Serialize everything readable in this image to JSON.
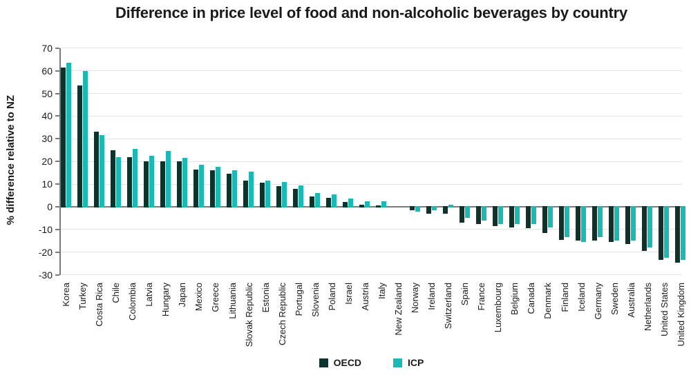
{
  "chart_data": {
    "type": "bar",
    "title": "Difference in price level of food and non-alcoholic beverages by country",
    "ylabel": "% difference relative to NZ",
    "xlabel": "",
    "ylim": [
      -30,
      70
    ],
    "ytick_step": 10,
    "yticks": [
      70,
      60,
      50,
      40,
      30,
      20,
      10,
      0,
      -10,
      -20,
      -30
    ],
    "grid": true,
    "legend_position": "bottom",
    "reference_country": "New Zealand",
    "categories": [
      "Korea",
      "Turkey",
      "Costa Rica",
      "Chile",
      "Colombia",
      "Latvia",
      "Hungary",
      "Japan",
      "Mexico",
      "Greece",
      "Lithuania",
      "Slovak Republic",
      "Estonia",
      "Czech Republic",
      "Portugal",
      "Slovenia",
      "Poland",
      "Israel",
      "Austria",
      "Italy",
      "New Zealand",
      "Norway",
      "Ireland",
      "Switzerland",
      "Spain",
      "France",
      "Luxembourg",
      "Belgium",
      "Canada",
      "Denmark",
      "Finland",
      "Iceland",
      "Germany",
      "Sweden",
      "Australia",
      "Netherlands",
      "United States",
      "United Kingdom"
    ],
    "series": [
      {
        "name": "OECD",
        "color": "#0e332e",
        "values": [
          61.5,
          53.5,
          33,
          25,
          22,
          20,
          20,
          20,
          16.5,
          16,
          14.5,
          11.5,
          10.5,
          9,
          8,
          4.5,
          4,
          2,
          1,
          0.5,
          0,
          -1.5,
          -3,
          -3,
          -7,
          -7.5,
          -8.5,
          -9,
          -9.5,
          -11.5,
          -14.5,
          -15,
          -15,
          -15.5,
          -16.5,
          -19.5,
          -23.5,
          -24.5
        ]
      },
      {
        "name": "ICP",
        "color": "#1cb8b4",
        "values": [
          63.5,
          60,
          31.5,
          22,
          25.5,
          22.5,
          24.5,
          21.5,
          18.5,
          17.5,
          16,
          15.5,
          11.5,
          11,
          9.5,
          6,
          5.5,
          3.5,
          2.5,
          2.5,
          0,
          -2,
          -1.5,
          1,
          -5,
          -6,
          -7.5,
          -7.5,
          -7.5,
          -9,
          -13.5,
          -15.5,
          -13.5,
          -15,
          -15,
          -18,
          -22.5,
          -23.5
        ]
      }
    ]
  },
  "style_colors": {
    "background": "#ffffff",
    "gridline": "#e3e3e3",
    "axis": "#7a7a7a",
    "text": "#1a1a1a"
  }
}
